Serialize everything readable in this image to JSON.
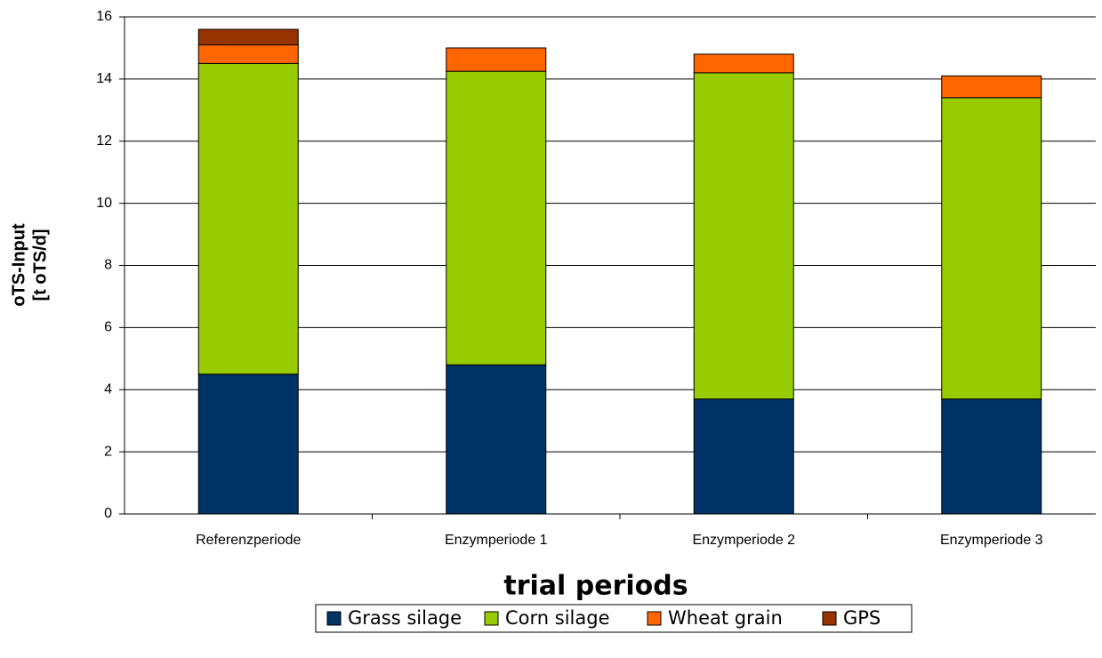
{
  "chart_data": {
    "type": "stacked_bar",
    "x_label": "trial periods",
    "y_label": [
      "oTS-Input",
      "[t oTS/d]"
    ],
    "categories": [
      "Referenzperiode",
      "Enzymperiode 1",
      "Enzymperiode 2",
      "Enzymperiode 3"
    ],
    "series": [
      {
        "name": "Grass silage",
        "color": "#003366",
        "values": [
          4.5,
          4.8,
          3.7,
          3.7
        ]
      },
      {
        "name": "Corn silage",
        "color": "#99cc00",
        "values": [
          10.0,
          9.45,
          10.5,
          9.7
        ]
      },
      {
        "name": "Wheat grain",
        "color": "#ff6600",
        "values": [
          0.6,
          0.75,
          0.6,
          0.7
        ]
      },
      {
        "name": "GPS",
        "color": "#993300",
        "values": [
          0.5,
          null,
          null,
          null
        ]
      }
    ],
    "ylim": [
      0,
      16
    ],
    "yticks": [
      0,
      2,
      4,
      6,
      8,
      10,
      12,
      14,
      16
    ],
    "grid": true,
    "legend": "bottom"
  }
}
